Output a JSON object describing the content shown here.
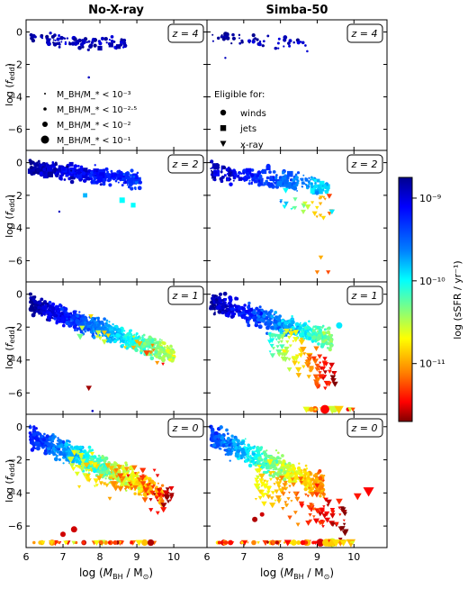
{
  "chart_data": {
    "type": "scatter",
    "columns": [
      "No-X-ray",
      "Simba-50"
    ],
    "rows": [
      {
        "label": "z = 4",
        "key": "z4"
      },
      {
        "label": "z = 2",
        "key": "z2"
      },
      {
        "label": "z = 1",
        "key": "z1"
      },
      {
        "label": "z = 0",
        "key": "z0"
      }
    ],
    "xlabel": "log (M_BH / M_⊙)",
    "ylabel": "log (f_edd)",
    "xlim": [
      6.0,
      10.9
    ],
    "ylim": [
      -7.3,
      0.75
    ],
    "xticks": [
      6,
      7,
      8,
      9,
      10
    ],
    "yticks": [
      0,
      -2,
      -4,
      -6
    ],
    "colorbar": {
      "label": "log (sSFR / yr⁻¹)",
      "colormap": "jet_r",
      "lim": [
        -11.7,
        -8.75
      ],
      "ticks": [
        {
          "value": -9,
          "label": "10⁻⁹"
        },
        {
          "value": -10,
          "label": "10⁻¹⁰"
        },
        {
          "value": -11,
          "label": "10⁻¹¹"
        }
      ]
    },
    "legend_size": {
      "placement": "lower-left (No-X-ray, z = 4)",
      "entries": [
        "M_BH/M_* < 10⁻³",
        "M_BH/M_* < 10⁻²·⁵",
        "M_BH/M_* < 10⁻²",
        "M_BH/M_* < 10⁻¹"
      ]
    },
    "legend_marker": {
      "placement": "lower-left (Simba-50, z = 4)",
      "title": "Eligible for:",
      "entries": [
        {
          "label": "winds",
          "marker": "circle"
        },
        {
          "label": "jets",
          "marker": "square"
        },
        {
          "label": "x-ray",
          "marker": "triangle-down"
        }
      ]
    },
    "series_estimates": {
      "z4": {
        "noxray": [
          [
            6.2,
            -0.2
          ],
          [
            6.4,
            -0.5
          ],
          [
            6.6,
            -0.3
          ],
          [
            6.8,
            -0.6
          ],
          [
            7.0,
            -0.4
          ],
          [
            7.2,
            -0.7
          ],
          [
            7.4,
            -0.5
          ],
          [
            7.6,
            -0.8
          ],
          [
            7.8,
            -0.7
          ],
          [
            8.0,
            -0.9
          ],
          [
            8.2,
            -1.0
          ],
          [
            8.4,
            -0.9
          ],
          [
            8.6,
            -0.8
          ],
          [
            7.7,
            -2.8
          ]
        ],
        "simba": [
          [
            6.2,
            -0.2
          ],
          [
            6.5,
            -0.4
          ],
          [
            6.8,
            -0.5
          ],
          [
            7.0,
            -0.7
          ],
          [
            7.3,
            -0.4
          ],
          [
            7.6,
            -0.6
          ],
          [
            7.9,
            -0.8
          ],
          [
            8.2,
            -0.7
          ],
          [
            8.6,
            -0.9
          ],
          [
            6.6,
            -1.5
          ]
        ]
      },
      "z2": {
        "noxray": [
          [
            6.3,
            -0.5
          ],
          [
            6.8,
            -0.8
          ],
          [
            7.2,
            -0.9
          ],
          [
            7.6,
            -1.1
          ],
          [
            8.0,
            -1.3
          ],
          [
            8.4,
            -1.8
          ],
          [
            8.8,
            -2.3
          ],
          [
            9.0,
            -2.5
          ],
          [
            6.9,
            -3.0
          ]
        ],
        "simba": [
          [
            6.3,
            -0.6
          ],
          [
            6.8,
            -0.9
          ],
          [
            7.4,
            -1.2
          ],
          [
            8.0,
            -1.8
          ],
          [
            8.6,
            -2.5
          ],
          [
            8.9,
            -4.0
          ],
          [
            9.3,
            -2.8
          ],
          [
            9.0,
            -6.7
          ],
          [
            9.3,
            -6.7
          ]
        ]
      },
      "z1": {
        "noxray": [
          [
            6.3,
            -0.5
          ],
          [
            6.8,
            -1.0
          ],
          [
            7.4,
            -1.6
          ],
          [
            8.0,
            -2.4
          ],
          [
            8.6,
            -3.0
          ],
          [
            9.2,
            -3.4
          ],
          [
            9.8,
            -3.8
          ],
          [
            7.7,
            -5.7
          ],
          [
            7.8,
            -7.2
          ]
        ],
        "simba": [
          [
            6.3,
            -0.4
          ],
          [
            6.9,
            -1.0
          ],
          [
            7.5,
            -1.6
          ],
          [
            8.0,
            -3.0
          ],
          [
            8.4,
            -4.2
          ],
          [
            8.8,
            -5.4
          ],
          [
            9.2,
            -6.0
          ],
          [
            9.5,
            -2.0
          ],
          [
            9.8,
            -7.0
          ]
        ]
      },
      "z0": {
        "noxray": [
          [
            6.3,
            -0.6
          ],
          [
            6.9,
            -1.6
          ],
          [
            7.5,
            -2.6
          ],
          [
            8.0,
            -3.4
          ],
          [
            8.6,
            -4.4
          ],
          [
            9.2,
            -4.8
          ],
          [
            9.8,
            -5.4
          ],
          [
            7.0,
            -6.4
          ],
          [
            6.5,
            -7.0
          ],
          [
            8.5,
            -7.0
          ]
        ],
        "simba": [
          [
            6.3,
            -0.8
          ],
          [
            6.9,
            -1.8
          ],
          [
            7.5,
            -2.8
          ],
          [
            8.0,
            -3.8
          ],
          [
            8.4,
            -5.2
          ],
          [
            8.8,
            -5.6
          ],
          [
            9.2,
            -6.0
          ],
          [
            9.6,
            -4.4
          ],
          [
            10.0,
            -4.2
          ],
          [
            10.5,
            -3.9
          ],
          [
            7.3,
            -5.6
          ],
          [
            7.0,
            -7.0
          ],
          [
            8.5,
            -7.0
          ],
          [
            9.6,
            -7.0
          ]
        ]
      }
    }
  }
}
